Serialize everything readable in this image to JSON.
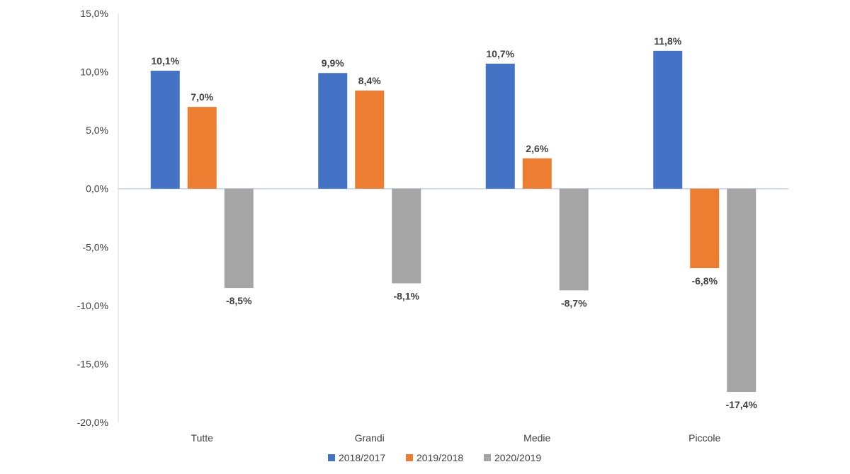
{
  "chart_data": {
    "type": "bar",
    "categories": [
      "Tutte",
      "Grandi",
      "Medie",
      "Piccole"
    ],
    "series": [
      {
        "name": "2018/2017",
        "values": [
          10.1,
          9.9,
          10.7,
          11.8
        ],
        "labels": [
          "10,1%",
          "9,9%",
          "10,7%",
          "11,8%"
        ],
        "color": "#4472C4"
      },
      {
        "name": "2019/2018",
        "values": [
          7.0,
          8.4,
          2.6,
          -6.8
        ],
        "labels": [
          "7,0%",
          "8,4%",
          "2,6%",
          "-6,8%"
        ],
        "color": "#ED7D31"
      },
      {
        "name": "2020/2019",
        "values": [
          -8.5,
          -8.1,
          -8.7,
          -17.4
        ],
        "labels": [
          "-8,5%",
          "-8,1%",
          "-8,7%",
          "-17,4%"
        ],
        "color": "#A5A5A5"
      }
    ],
    "y_ticks": [
      15,
      10,
      5,
      0,
      -5,
      -10,
      -15,
      -20
    ],
    "y_tick_labels": [
      "15,0%",
      "10,0%",
      "5,0%",
      "0,0%",
      "-5,0%",
      "-10,0%",
      "-15,0%",
      "-20,0%"
    ],
    "ylim": [
      -20,
      15
    ],
    "grid": false,
    "legend_position": "bottom",
    "title": "",
    "xlabel": "",
    "ylabel": ""
  }
}
